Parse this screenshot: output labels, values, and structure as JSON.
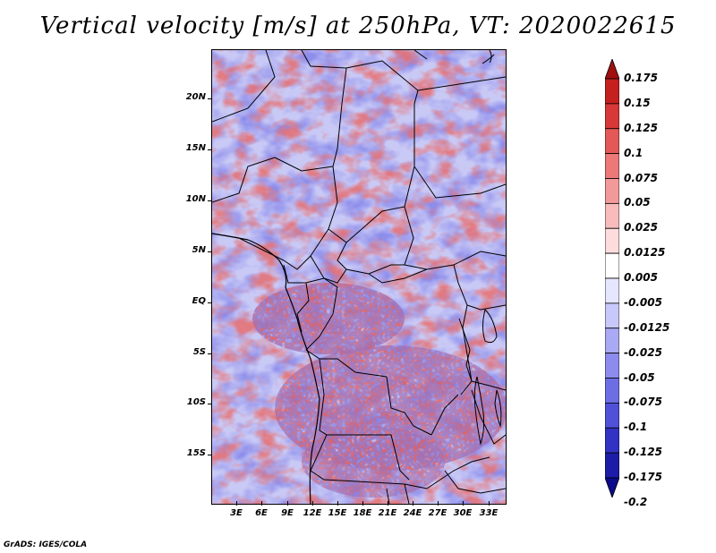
{
  "title": "Vertical velocity [m/s] at 250hPa, VT: 2020022615",
  "credit": "GrADS: IGES/COLA",
  "map": {
    "region": "Central and Southern Africa",
    "lat_labels": [
      "20N",
      "15N",
      "10N",
      "5N",
      "EQ",
      "5S",
      "10S",
      "15S"
    ],
    "lon_labels": [
      "3E",
      "6E",
      "9E",
      "12E",
      "15E",
      "18E",
      "21E",
      "24E",
      "27E",
      "30E",
      "33E"
    ]
  },
  "colorbar": {
    "levels": [
      "0.175",
      "0.15",
      "0.125",
      "0.1",
      "0.075",
      "0.05",
      "0.025",
      "0.0125",
      "0.005",
      "-0.005",
      "-0.0125",
      "-0.025",
      "-0.05",
      "-0.075",
      "-0.1",
      "-0.125",
      "-0.175",
      "-0.2"
    ],
    "colors": [
      "#a01010",
      "#c42020",
      "#d83838",
      "#e45858",
      "#ec7878",
      "#f29a9a",
      "#f8bcbc",
      "#fcdcdc",
      "#ffffff",
      "#e6e6ff",
      "#c8c8fa",
      "#aaaaf4",
      "#8c8cee",
      "#6e6ee4",
      "#5050d8",
      "#3232c4",
      "#1c1ca8",
      "#0a0a8a"
    ]
  },
  "chart_data": {
    "type": "heatmap",
    "title": "Vertical velocity [m/s] at 250hPa, VT: 2020022615",
    "variable": "Vertical velocity",
    "units": "m/s",
    "level": "250hPa",
    "valid_time": "2020022615",
    "x_range_deg": [
      0,
      35
    ],
    "y_range_deg": [
      -20,
      24
    ],
    "x_ticks": [
      "3E",
      "6E",
      "9E",
      "12E",
      "15E",
      "18E",
      "21E",
      "24E",
      "27E",
      "30E",
      "33E"
    ],
    "y_ticks": [
      "20N",
      "15N",
      "10N",
      "5N",
      "EQ",
      "5S",
      "10S",
      "15S"
    ],
    "contour_levels": [
      0.175,
      0.15,
      0.125,
      0.1,
      0.075,
      0.05,
      0.025,
      0.0125,
      0.005,
      -0.005,
      -0.0125,
      -0.025,
      -0.05,
      -0.075,
      -0.1,
      -0.125,
      -0.175,
      -0.2
    ]
  }
}
